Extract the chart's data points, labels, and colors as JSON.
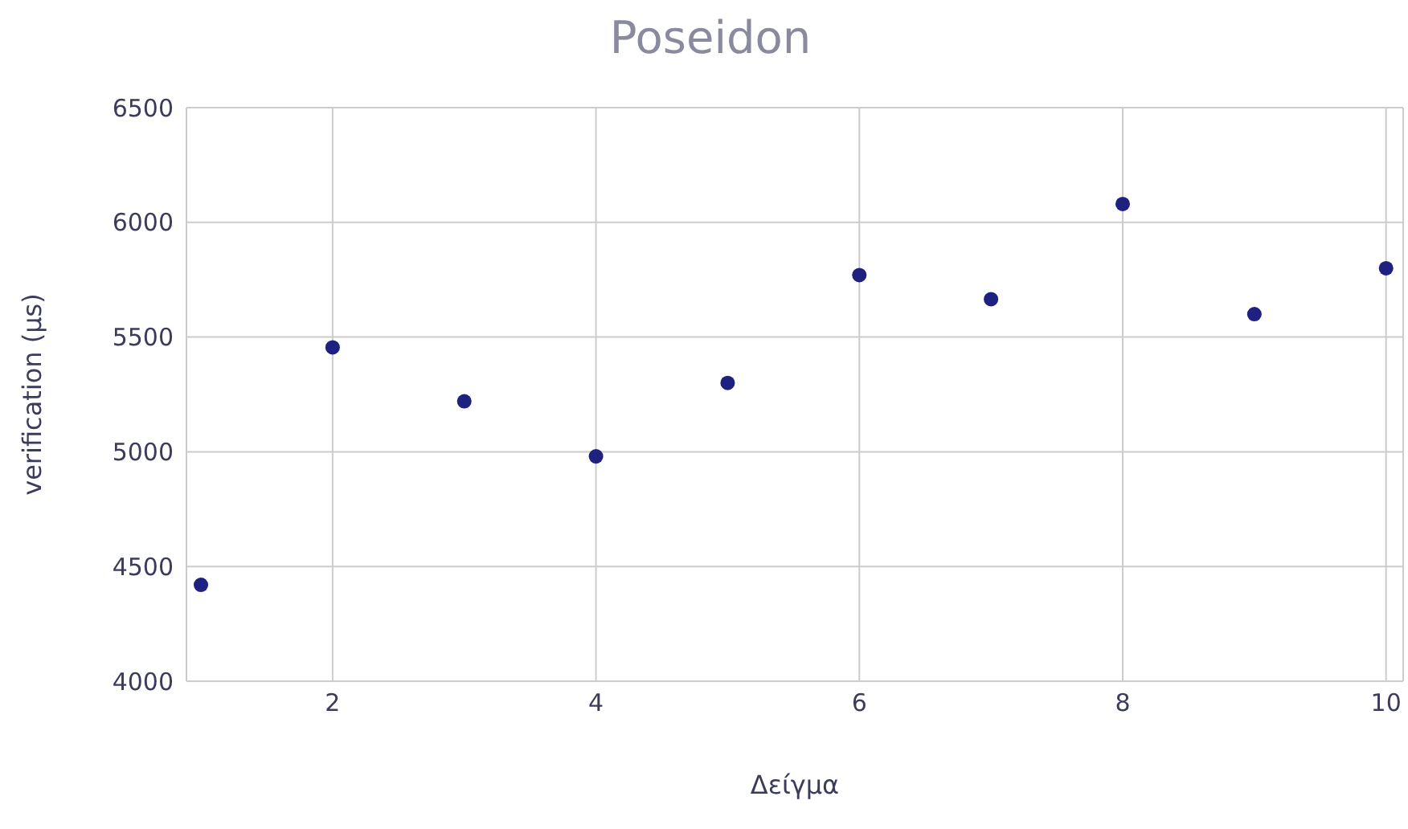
{
  "chart_data": {
    "type": "scatter",
    "title": "Poseidon",
    "xlabel": "Δείγμα",
    "ylabel": "verification (μs)",
    "x": [
      1,
      2,
      3,
      4,
      5,
      6,
      7,
      8,
      9,
      10
    ],
    "series": [
      {
        "color": "#1f2180",
        "values": [
          4420,
          5455,
          5220,
          4980,
          5300,
          5770,
          5665,
          6080,
          5600,
          5800
        ]
      }
    ],
    "xlim": [
      0.89,
      10.13
    ],
    "xticks": [
      2,
      4,
      6,
      8,
      10
    ],
    "ylim": [
      4000,
      6500
    ],
    "yticks": [
      4000,
      4500,
      5000,
      5500,
      6000,
      6500
    ],
    "grid": true,
    "marker": "circle"
  }
}
